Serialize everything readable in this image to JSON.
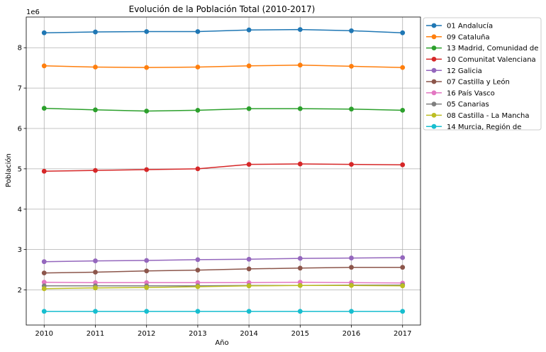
{
  "chart_data": {
    "type": "line",
    "title": "Evolución de la Población Total (2010-2017)",
    "xlabel": "Año",
    "ylabel": "Población",
    "y_scale_label": "1e6",
    "x": [
      2010,
      2011,
      2012,
      2013,
      2014,
      2015,
      2016,
      2017
    ],
    "x_ticks": [
      "2010",
      "2011",
      "2012",
      "2013",
      "2014",
      "2015",
      "2016",
      "2017"
    ],
    "y_ticks": [
      "2",
      "3",
      "4",
      "5",
      "6",
      "7",
      "8"
    ],
    "ylim": [
      1.13,
      8.76
    ],
    "grid": true,
    "legend_position": "outside-right",
    "series": [
      {
        "name": "01 Andalucía",
        "color": "#1f77b4",
        "values": [
          8.37,
          8.39,
          8.4,
          8.4,
          8.44,
          8.45,
          8.42,
          8.37
        ]
      },
      {
        "name": "09 Cataluña",
        "color": "#ff7f0e",
        "values": [
          7.55,
          7.52,
          7.51,
          7.52,
          7.55,
          7.57,
          7.54,
          7.51
        ]
      },
      {
        "name": "13 Madrid, Comunidad de",
        "color": "#2ca02c",
        "values": [
          6.5,
          6.46,
          6.43,
          6.45,
          6.49,
          6.49,
          6.48,
          6.45
        ]
      },
      {
        "name": "10 Comunitat Valenciana",
        "color": "#d62728",
        "values": [
          4.94,
          4.96,
          4.98,
          5.0,
          5.11,
          5.12,
          5.11,
          5.1
        ]
      },
      {
        "name": "12 Galicia",
        "color": "#9467bd",
        "values": [
          2.7,
          2.72,
          2.73,
          2.75,
          2.76,
          2.78,
          2.79,
          2.8
        ]
      },
      {
        "name": "07 Castilla y León",
        "color": "#8c564b",
        "values": [
          2.42,
          2.44,
          2.47,
          2.49,
          2.52,
          2.54,
          2.56,
          2.56
        ]
      },
      {
        "name": "16 País Vasco",
        "color": "#e377c2",
        "values": [
          2.19,
          2.18,
          2.18,
          2.18,
          2.18,
          2.19,
          2.18,
          2.17
        ]
      },
      {
        "name": "05 Canarias",
        "color": "#7f7f7f",
        "values": [
          2.1,
          2.1,
          2.1,
          2.1,
          2.11,
          2.11,
          2.12,
          2.12
        ]
      },
      {
        "name": "08 Castilla - La Mancha",
        "color": "#bcbd22",
        "values": [
          2.03,
          2.05,
          2.06,
          2.08,
          2.1,
          2.11,
          2.11,
          2.1
        ]
      },
      {
        "name": "14 Murcia, Región de",
        "color": "#17becf",
        "values": [
          1.47,
          1.47,
          1.47,
          1.47,
          1.47,
          1.47,
          1.47,
          1.47
        ]
      }
    ]
  }
}
